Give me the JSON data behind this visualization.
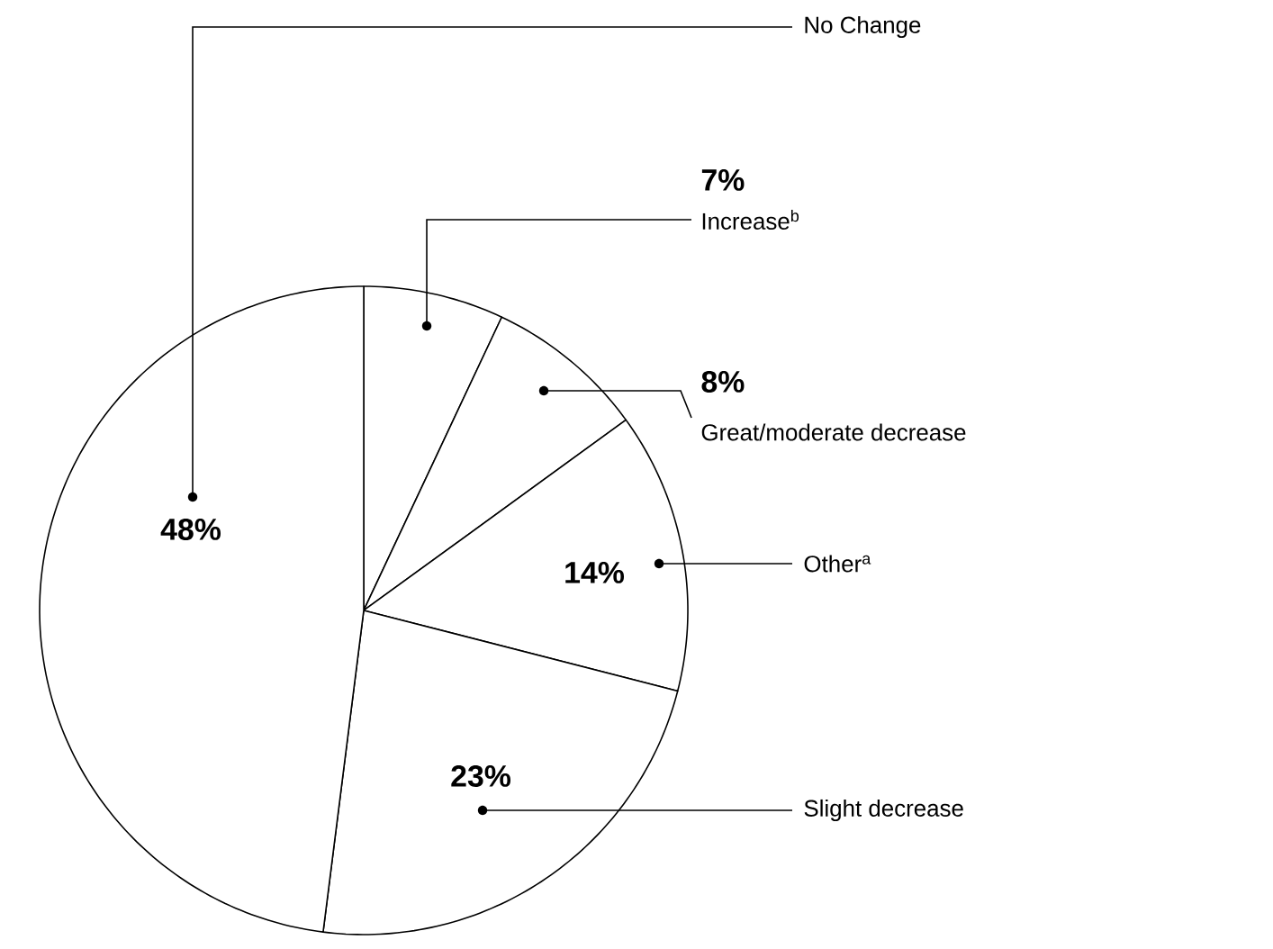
{
  "chart_data": {
    "type": "pie",
    "categories": [
      "Increase$^{b}$",
      "Great/moderate decrease",
      "Other$^{a}$",
      "Slight decrease",
      "No Change"
    ],
    "values": [
      7,
      8,
      14,
      23,
      48
    ],
    "value_labels": [
      "7%",
      "8%",
      "14%",
      "23%",
      "48%"
    ],
    "colors": [
      "#ffffff",
      "#ffffff",
      "#ffffff",
      "#ffffff",
      "#ffffff"
    ]
  }
}
